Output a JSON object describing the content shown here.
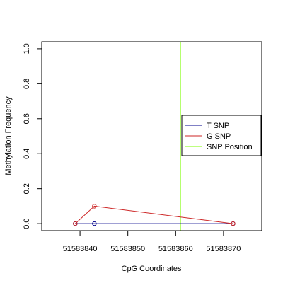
{
  "chart_data": {
    "type": "line",
    "title": "",
    "xlabel": "CpG Coordinates",
    "ylabel": "Methylation Frequency",
    "xlim": [
      51583832,
      51583878
    ],
    "ylim": [
      -0.04,
      1.04
    ],
    "x_ticks": [
      51583840,
      51583850,
      51583860,
      51583870
    ],
    "x_tick_labels": [
      "51583840",
      "51583850",
      "51583860",
      "51583870"
    ],
    "y_ticks": [
      0.0,
      0.2,
      0.4,
      0.6,
      0.8,
      1.0
    ],
    "y_tick_labels": [
      "0.0",
      "0.2",
      "0.4",
      "0.6",
      "0.8",
      "1.0"
    ],
    "grid": false,
    "legend_position": "right",
    "series": [
      {
        "name": "T SNP",
        "color": "#00008B",
        "x": [
          51583839,
          51583843,
          51583872
        ],
        "y": [
          0.0,
          0.0,
          0.0
        ]
      },
      {
        "name": "G SNP",
        "color": "#CD2626",
        "x": [
          51583839,
          51583843,
          51583872
        ],
        "y": [
          0.0,
          0.1,
          0.0
        ]
      }
    ],
    "snp_position": {
      "name": "SNP Position",
      "color": "#7CFC00",
      "x": 51583861
    },
    "legend": [
      "T SNP",
      "G SNP",
      "SNP Position"
    ]
  }
}
